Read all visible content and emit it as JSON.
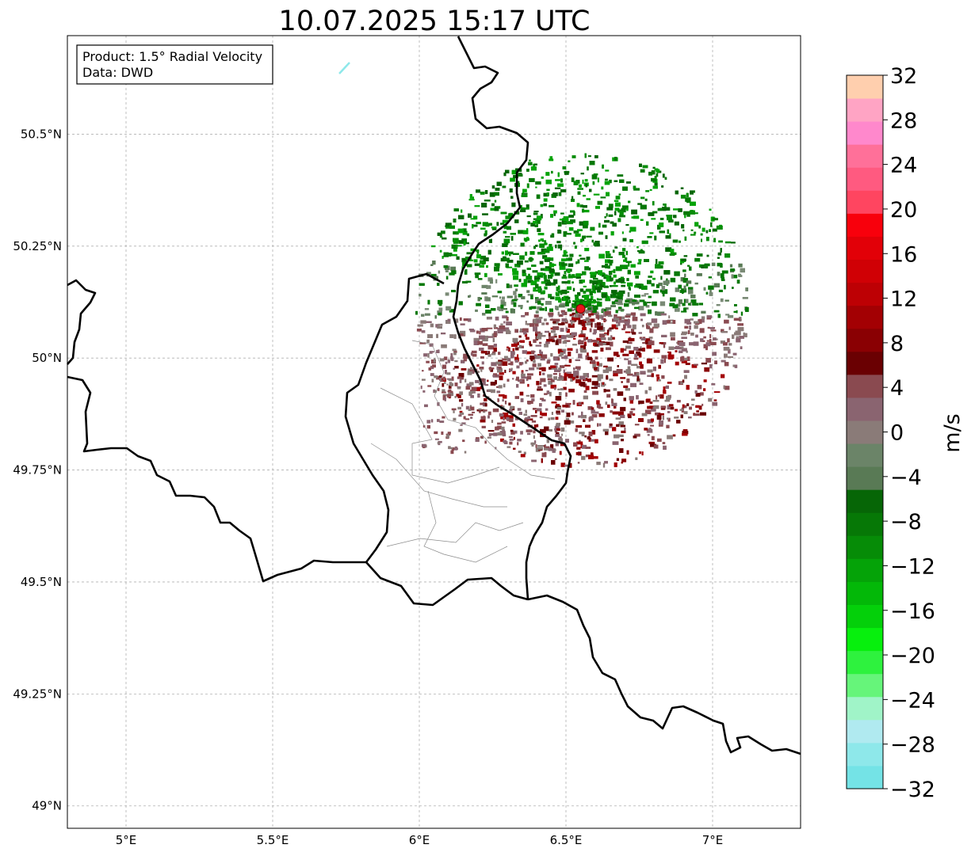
{
  "title": "10.07.2025 15:17 UTC",
  "info_box": {
    "product": "Product: 1.5° Radial Velocity",
    "data": "Data: DWD"
  },
  "map": {
    "lon_range": [
      4.8,
      7.3
    ],
    "lat_range": [
      48.95,
      50.72
    ],
    "lon_ticks": [
      {
        "value": 5.0,
        "label": "5°E"
      },
      {
        "value": 5.5,
        "label": "5.5°E"
      },
      {
        "value": 6.0,
        "label": "6°E"
      },
      {
        "value": 6.5,
        "label": "6.5°E"
      },
      {
        "value": 7.0,
        "label": "7°E"
      }
    ],
    "lat_ticks": [
      {
        "value": 49.0,
        "label": "49°N"
      },
      {
        "value": 49.25,
        "label": "49.25°N"
      },
      {
        "value": 49.5,
        "label": "49.5°N"
      },
      {
        "value": 49.75,
        "label": "49.75°N"
      },
      {
        "value": 50.0,
        "label": "50°N"
      },
      {
        "value": 50.25,
        "label": "50.25°N"
      },
      {
        "value": 50.5,
        "label": "50.5°N"
      }
    ],
    "grid": "dashed",
    "radar_site": {
      "lon": 6.55,
      "lat": 50.11,
      "color": "#e8141a"
    }
  },
  "colorbar": {
    "label": "m/s",
    "min": -32,
    "max": 32,
    "step": 4,
    "ticks": [
      "32",
      "28",
      "24",
      "20",
      "16",
      "12",
      "8",
      "4",
      "0",
      "−04",
      "−8",
      "−12",
      "−16",
      "−20",
      "−24",
      "−28",
      "−32"
    ],
    "tick_labels": [
      "32",
      "28",
      "24",
      "20",
      "16",
      "12",
      "8",
      "4",
      "0",
      "−4",
      "−8",
      "−12",
      "−16",
      "−20",
      "−24",
      "−28",
      "−32"
    ],
    "colors_bottom_to_top": [
      "#74e3e6",
      "#8ee8ea",
      "#b0eaf0",
      "#a0f4c8",
      "#66f57a",
      "#2ef23e",
      "#07f00d",
      "#04d00a",
      "#03b808",
      "#05a308",
      "#068c07",
      "#067806",
      "#066606",
      "#597a55",
      "#6b8468",
      "#8a7b78",
      "#8a6470",
      "#8a4a50",
      "#6a0002",
      "#8a0003",
      "#a30003",
      "#bd0004",
      "#d00005",
      "#e20008",
      "#f8000c",
      "#ff4560",
      "#ff5a80",
      "#ff7099",
      "#ff88cc",
      "#ffa4c4",
      "#ffcfae"
    ]
  }
}
